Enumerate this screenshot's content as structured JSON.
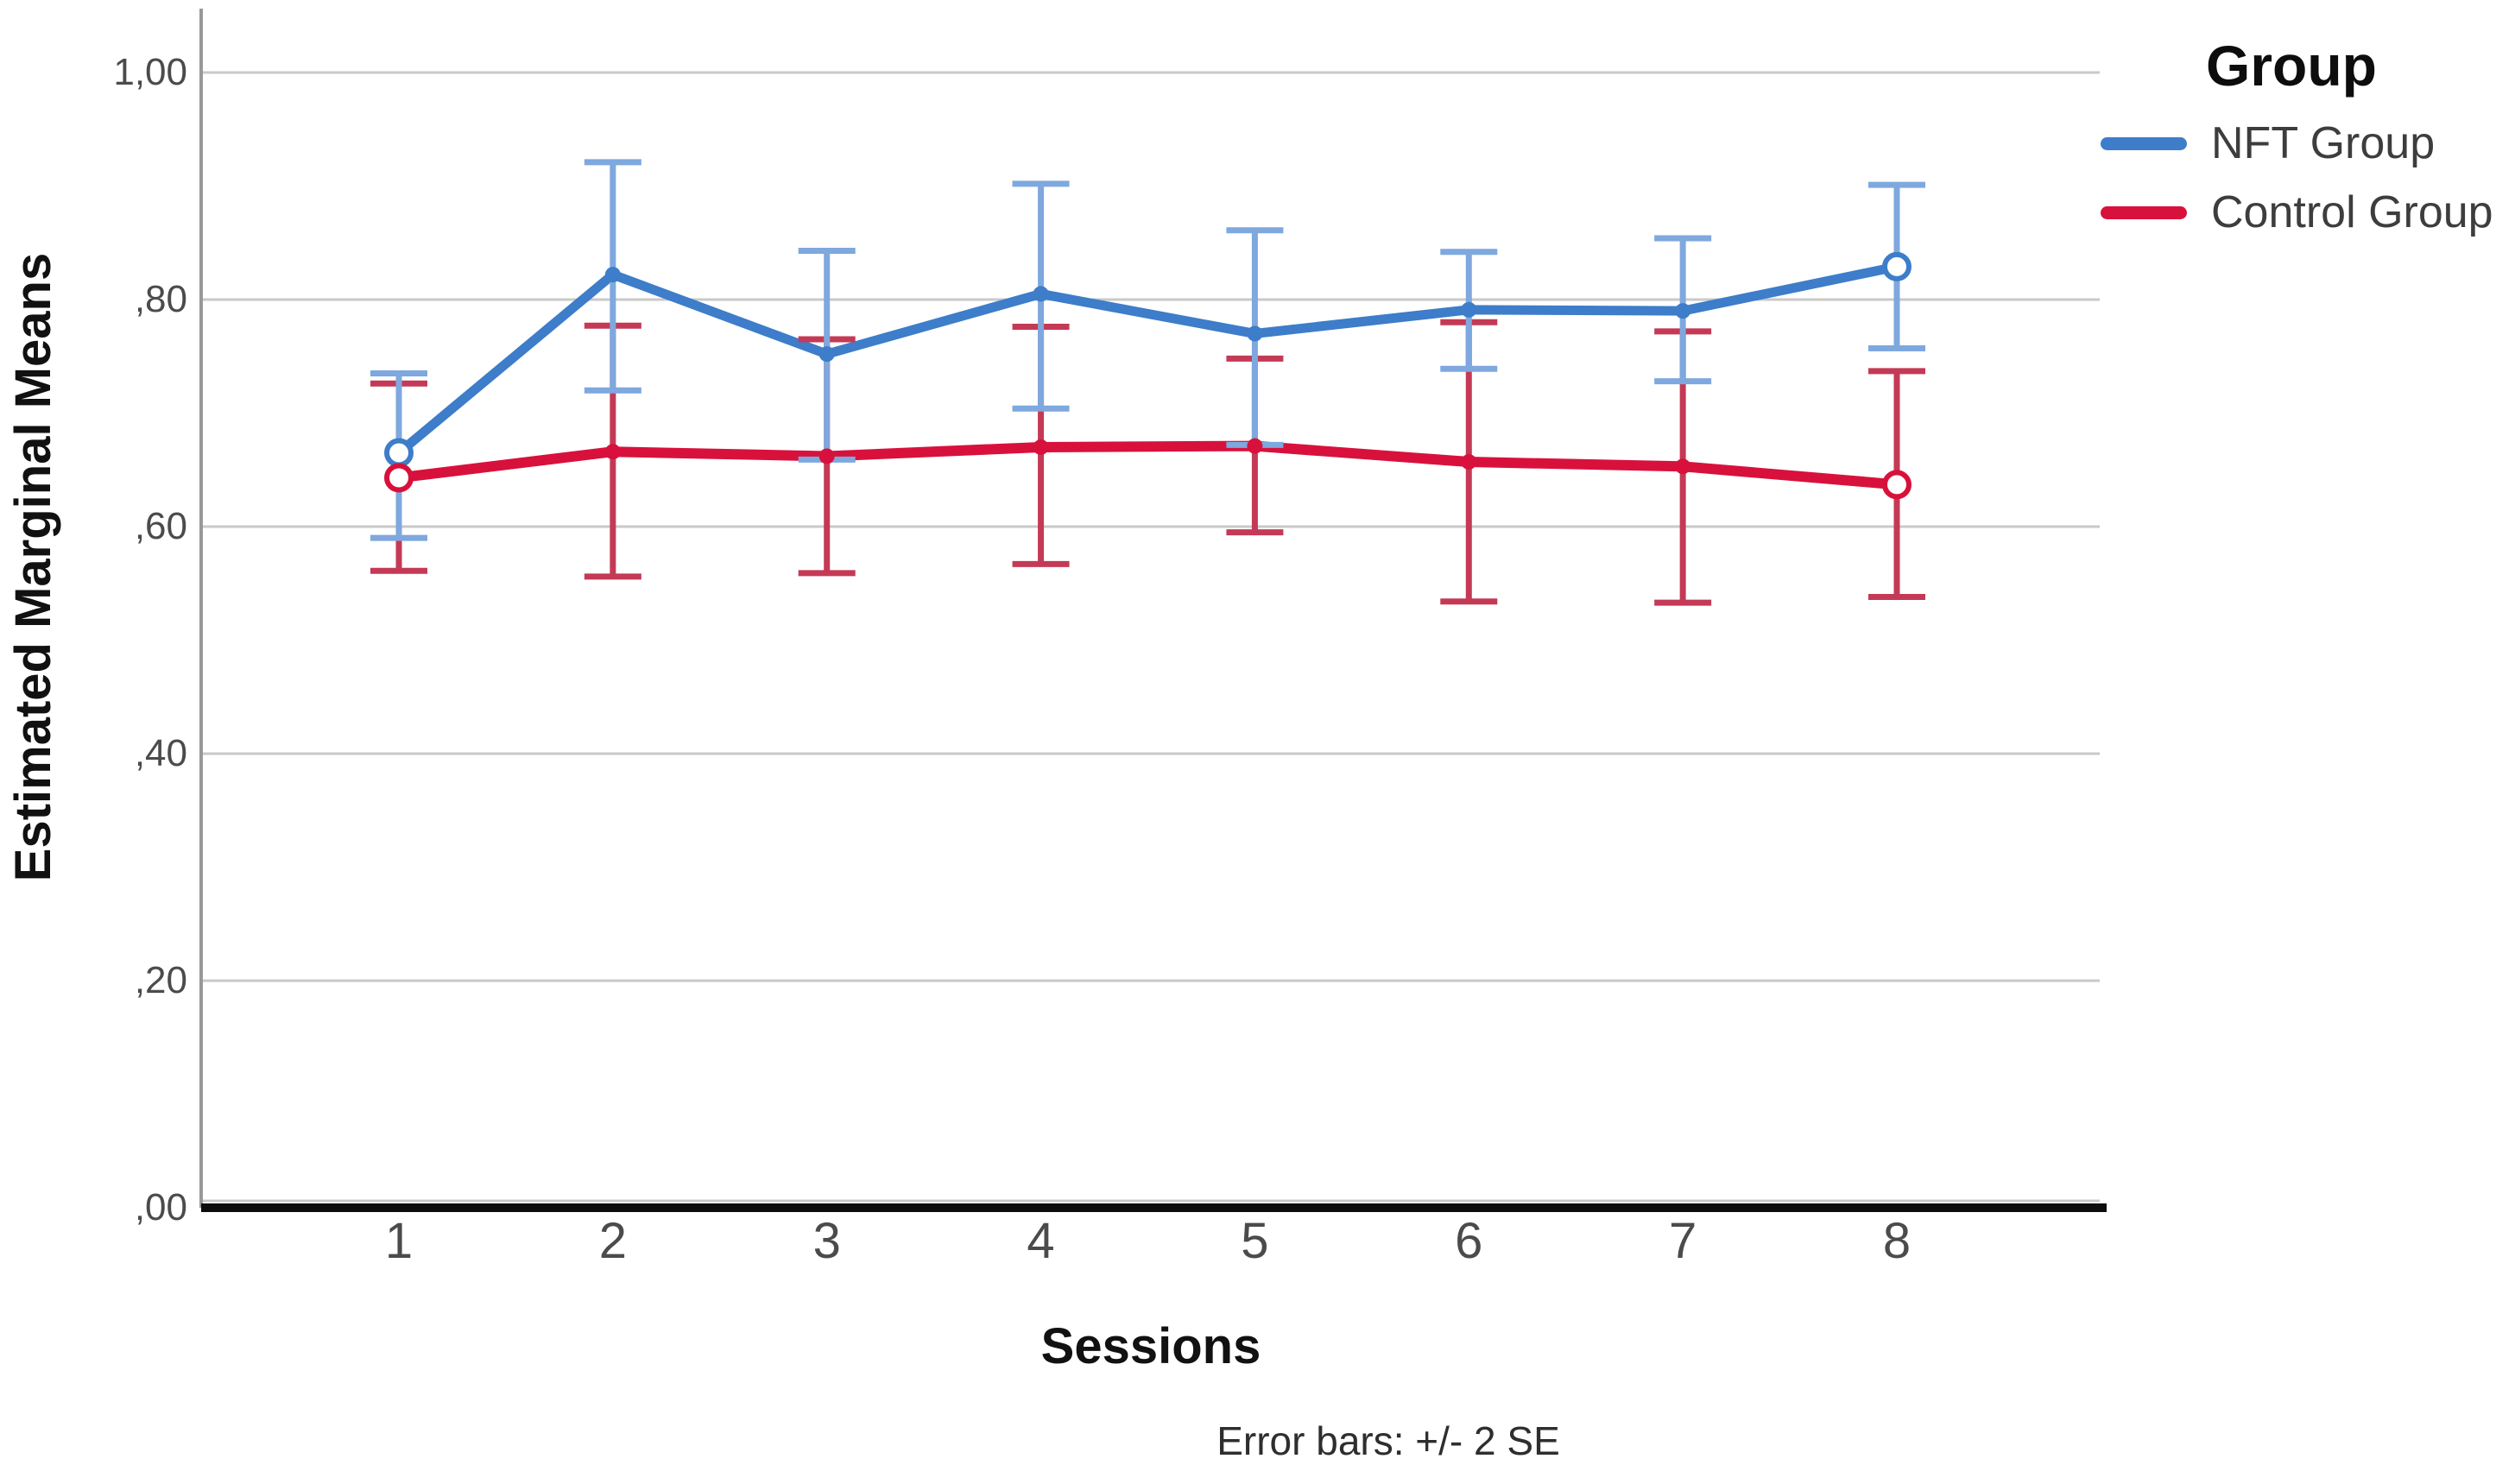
{
  "legend": {
    "title": "Group",
    "items": [
      {
        "label": "NFT Group",
        "color": "#3d7dc9"
      },
      {
        "label": "Control Group",
        "color": "#d8113c"
      }
    ]
  },
  "axes": {
    "y_title": "Estimated Marginal Means",
    "x_title": "Sessions"
  },
  "footnote": "Error bars: +/- 2 SE",
  "colors": {
    "nft_line": "#3d7dc9",
    "nft_error": "#7ea8de",
    "control_line": "#d8113c",
    "control_error": "#c43a56",
    "gridline": "#c9c9c9",
    "y_axis_line": "#999999",
    "x_axis_line": "#0d0d0d",
    "tick_text": "#4b4b4b"
  },
  "chart_data": {
    "type": "line",
    "title": "",
    "xlabel": "Sessions",
    "ylabel": "Estimated Marginal Means",
    "x": [
      1,
      2,
      3,
      4,
      5,
      6,
      7,
      8
    ],
    "x_tick_labels": [
      "1",
      "2",
      "3",
      "4",
      "5",
      "6",
      "7",
      "8"
    ],
    "y_ticks": [
      {
        "value": 0.0,
        "label": ",00"
      },
      {
        "value": 0.2,
        "label": ",20"
      },
      {
        "value": 0.4,
        "label": ",40"
      },
      {
        "value": 0.6,
        "label": ",60"
      },
      {
        "value": 0.8,
        "label": ",80"
      },
      {
        "value": 1.0,
        "label": "1,00"
      }
    ],
    "ylim": [
      0.0,
      1.064
    ],
    "grid": "horizontal",
    "legend_position": "top-right",
    "error_bar_note": "+/- 2 SE",
    "series": [
      {
        "name": "NFT Group",
        "means": [
          0.665,
          0.822,
          0.752,
          0.805,
          0.77,
          0.791,
          0.79,
          0.829
        ],
        "upper": [
          0.735,
          0.921,
          0.843,
          0.902,
          0.861,
          0.842,
          0.854,
          0.901
        ],
        "lower": [
          0.59,
          0.72,
          0.659,
          0.704,
          0.672,
          0.739,
          0.728,
          0.757
        ]
      },
      {
        "name": "Control Group",
        "means": [
          0.643,
          0.666,
          0.662,
          0.67,
          0.671,
          0.657,
          0.653,
          0.637
        ],
        "upper": [
          0.726,
          0.777,
          0.765,
          0.776,
          0.748,
          0.78,
          0.772,
          0.737
        ],
        "lower": [
          0.561,
          0.556,
          0.559,
          0.567,
          0.595,
          0.534,
          0.533,
          0.538
        ]
      }
    ]
  }
}
